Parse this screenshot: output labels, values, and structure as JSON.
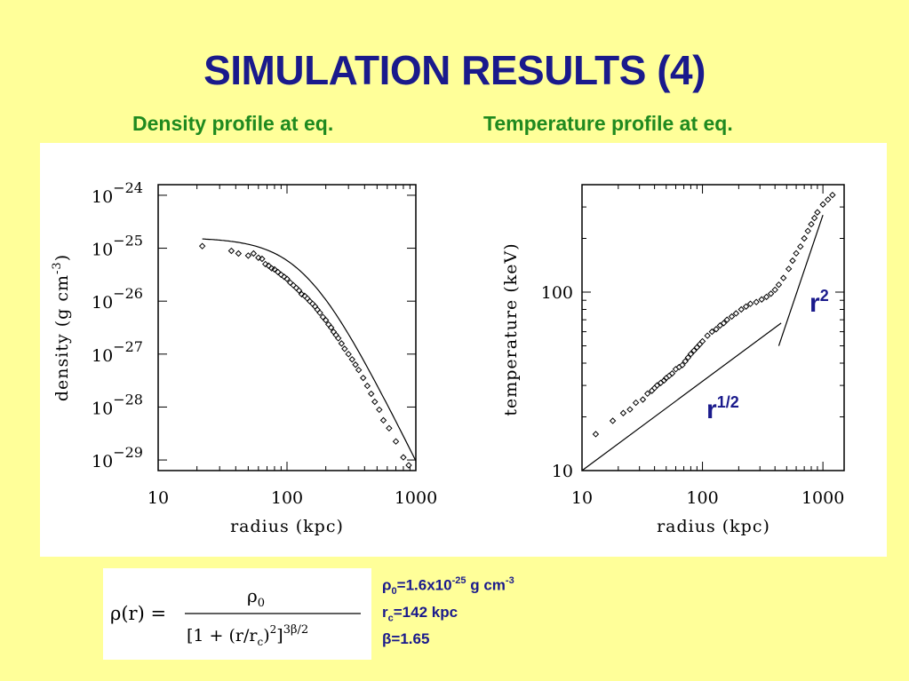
{
  "title": "SIMULATION RESULTS (4)",
  "subtitles": {
    "left": "Density profile at eq.",
    "right": "Temperature profile at eq."
  },
  "colors": {
    "background": "#ffff99",
    "title": "#1a1a8c",
    "subtitle": "#1f8a1f",
    "annotation": "#1a1a8c",
    "plot": "#000000"
  },
  "chart_data": [
    {
      "type": "scatter",
      "xlabel": "radius (kpc)",
      "ylabel": "density (g cm",
      "ylabel_sup": "-3",
      "ylabel_close": ")",
      "x_scale": "log",
      "y_scale": "log",
      "xlim": [
        10,
        1000
      ],
      "ylim_exp": [
        -29.2,
        -23.8
      ],
      "x_ticks": [
        {
          "value": 10,
          "label": "10"
        },
        {
          "value": 100,
          "label": "100"
        },
        {
          "value": 1000,
          "label": "1000"
        }
      ],
      "y_ticks": [
        {
          "exp": -24,
          "base": "10",
          "sup": "−24"
        },
        {
          "exp": -25,
          "base": "10",
          "sup": "−25"
        },
        {
          "exp": -26,
          "base": "10",
          "sup": "−26"
        },
        {
          "exp": -27,
          "base": "10",
          "sup": "−27"
        },
        {
          "exp": -28,
          "base": "10",
          "sup": "−28"
        },
        {
          "exp": -29,
          "base": "10",
          "sup": "−29"
        }
      ],
      "series": [
        {
          "style": "diamond-markers",
          "x": [
            22,
            37,
            42,
            50,
            55,
            60,
            64,
            68,
            72,
            76,
            80,
            85,
            90,
            95,
            100,
            106,
            112,
            118,
            124,
            130,
            137,
            144,
            150,
            158,
            165,
            172,
            180,
            190,
            200,
            210,
            220,
            230,
            240,
            250,
            265,
            280,
            300,
            320,
            340,
            360,
            390,
            420,
            450,
            480,
            520,
            560,
            620,
            700,
            800,
            880
          ],
          "y_exp": [
            -24.96,
            -25.05,
            -25.1,
            -25.14,
            -25.1,
            -25.18,
            -25.2,
            -25.3,
            -25.33,
            -25.38,
            -25.4,
            -25.45,
            -25.5,
            -25.54,
            -25.58,
            -25.65,
            -25.7,
            -25.75,
            -25.8,
            -25.87,
            -25.9,
            -25.95,
            -26.0,
            -26.05,
            -26.1,
            -26.16,
            -26.22,
            -26.3,
            -26.36,
            -26.44,
            -26.5,
            -26.58,
            -26.64,
            -26.7,
            -26.8,
            -26.9,
            -27.0,
            -27.1,
            -27.2,
            -27.3,
            -27.45,
            -27.6,
            -27.75,
            -27.9,
            -28.05,
            -28.25,
            -28.4,
            -28.65,
            -28.95,
            -29.1
          ]
        },
        {
          "style": "solid-line",
          "model": "beta-model fit",
          "rho0_exp": -24.8,
          "rc": 142,
          "beta": 1.65,
          "x_range": [
            22,
            1000
          ]
        }
      ]
    },
    {
      "type": "scatter",
      "xlabel": "radius (kpc)",
      "ylabel": "temperature (keV)",
      "x_scale": "log",
      "y_scale": "log",
      "xlim": [
        10,
        1500
      ],
      "ylim": [
        10,
        400
      ],
      "x_ticks": [
        {
          "value": 10,
          "label": "10"
        },
        {
          "value": 100,
          "label": "100"
        },
        {
          "value": 1000,
          "label": "1000"
        }
      ],
      "y_ticks": [
        {
          "value": 10,
          "label": "10"
        },
        {
          "value": 100,
          "label": "100"
        }
      ],
      "series": [
        {
          "style": "diamond-markers",
          "x": [
            13,
            18,
            22,
            25,
            28,
            32,
            35,
            38,
            40,
            42,
            45,
            48,
            50,
            53,
            56,
            60,
            64,
            68,
            72,
            76,
            80,
            85,
            90,
            95,
            100,
            110,
            120,
            130,
            140,
            150,
            160,
            175,
            190,
            210,
            230,
            250,
            280,
            310,
            340,
            370,
            400,
            430,
            470,
            520,
            560,
            600,
            650,
            700,
            750,
            800,
            850,
            900,
            1000,
            1100,
            1200
          ],
          "y": [
            16,
            19,
            21,
            22,
            24,
            25,
            27,
            28,
            29,
            30,
            31,
            32,
            33,
            34,
            35,
            37,
            38,
            39,
            41,
            43,
            45,
            47,
            49,
            51,
            53,
            57,
            60,
            62,
            65,
            67,
            70,
            73,
            76,
            80,
            83,
            86,
            88,
            91,
            94,
            98,
            103,
            110,
            120,
            135,
            150,
            165,
            180,
            200,
            220,
            240,
            260,
            280,
            310,
            330,
            350
          ]
        }
      ],
      "annotations": [
        {
          "label": "r",
          "sup": "1/2",
          "slope": 0.5,
          "x_range": [
            10,
            450
          ],
          "y_at_start": 10
        },
        {
          "label": "r",
          "sup": "2",
          "slope": 2,
          "x_range": [
            430,
            1000
          ],
          "y_at_start": 50
        }
      ]
    }
  ],
  "formula": {
    "lhs": "ρ(r) =",
    "numerator": "ρ",
    "numerator_sub": "0",
    "denominator_pre": "[1 + (r/r",
    "denominator_sub": "c",
    "denominator_post": ")",
    "denominator_pow2": "2",
    "denominator_close": "]",
    "denominator_exp": "3β/2"
  },
  "params": [
    {
      "symbol": "ρ",
      "sub": "0",
      "text": "=1.6x10",
      "sup": "-25",
      "unit": " g cm",
      "unit_sup": "-3"
    },
    {
      "symbol": "r",
      "sub": "c",
      "text": "=142 kpc"
    },
    {
      "symbol": "β",
      "text": "=1.65"
    }
  ]
}
